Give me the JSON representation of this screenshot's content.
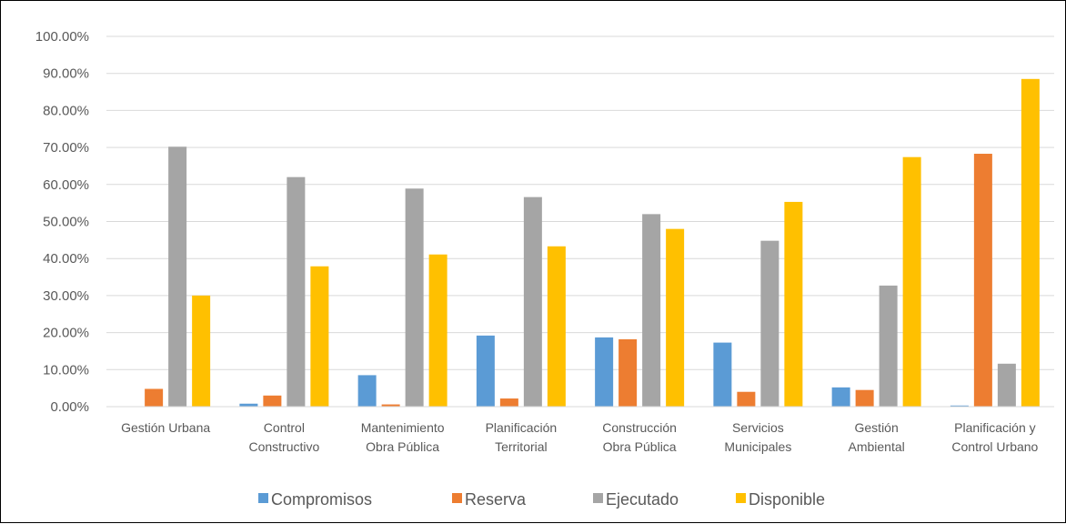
{
  "chart_data": {
    "type": "bar",
    "categories": [
      [
        "Gestión Urbana"
      ],
      [
        "Control",
        "Constructivo"
      ],
      [
        "Mantenimiento",
        "Obra Pública"
      ],
      [
        "Planificación",
        "Territorial"
      ],
      [
        "Construcción",
        "Obra Pública"
      ],
      [
        "Servicios",
        "Municipales"
      ],
      [
        "Gestión",
        "Ambiental"
      ],
      [
        "Planificación y",
        "Control Urbano"
      ]
    ],
    "series": [
      {
        "name": "Compromisos",
        "color": "#5B9BD5",
        "values": [
          0.0,
          0.8,
          8.5,
          19.2,
          18.7,
          17.3,
          5.2,
          0.3
        ]
      },
      {
        "name": "Reserva",
        "color": "#ED7D31",
        "values": [
          4.8,
          3.0,
          0.6,
          2.2,
          18.2,
          4.0,
          4.5,
          68.3
        ]
      },
      {
        "name": "Ejecutado",
        "color": "#A5A5A5",
        "values": [
          70.2,
          62.0,
          58.9,
          56.6,
          52.0,
          44.8,
          32.7,
          11.6
        ]
      },
      {
        "name": "Disponible",
        "color": "#FFC000",
        "values": [
          30.0,
          37.9,
          41.1,
          43.3,
          48.0,
          55.3,
          67.4,
          88.5
        ]
      }
    ],
    "y_ticks": [
      "0.00%",
      "10.00%",
      "20.00%",
      "30.00%",
      "40.00%",
      "50.00%",
      "60.00%",
      "70.00%",
      "80.00%",
      "90.00%",
      "100.00%"
    ],
    "ylim": [
      0,
      100
    ],
    "grid": true,
    "legend_position": "bottom",
    "gridline_color": "#D9D9D9"
  }
}
